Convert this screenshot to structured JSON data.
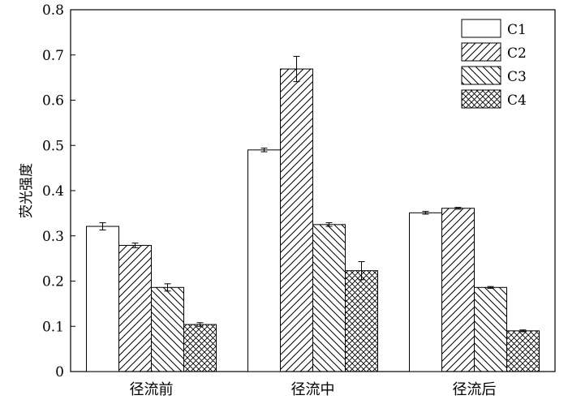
{
  "chart_data": {
    "type": "bar",
    "title": "",
    "xlabel": "",
    "ylabel": "荧光强度",
    "ylim": [
      0,
      0.8
    ],
    "yticks": [
      "0",
      "0.1",
      "0.2",
      "0.3",
      "0.4",
      "0.5",
      "0.6",
      "0.7",
      "0.8"
    ],
    "categories": [
      "径流前",
      "径流中",
      "径流后"
    ],
    "legend_position": "top-right",
    "grid": false,
    "series": [
      {
        "name": "C1",
        "pattern": "none",
        "values": [
          0.321,
          0.49,
          0.351
        ],
        "errors": [
          0.008,
          0.004,
          0.003
        ]
      },
      {
        "name": "C2",
        "pattern": "diagonal-up",
        "values": [
          0.279,
          0.669,
          0.361
        ],
        "errors": [
          0.005,
          0.028,
          0.002
        ]
      },
      {
        "name": "C3",
        "pattern": "diagonal-down",
        "values": [
          0.186,
          0.325,
          0.186
        ],
        "errors": [
          0.008,
          0.004,
          0.002
        ]
      },
      {
        "name": "C4",
        "pattern": "crosshatch",
        "values": [
          0.104,
          0.223,
          0.09
        ],
        "errors": [
          0.004,
          0.02,
          0.002
        ]
      }
    ]
  }
}
